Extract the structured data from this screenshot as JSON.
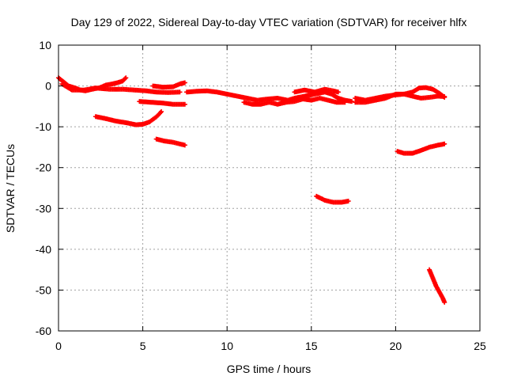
{
  "chart_data": {
    "type": "scatter",
    "title": "Day 129 of 2022, Sidereal Day-to-day VTEC variation (SDTVAR) for receiver hlfx",
    "xlabel": "GPS time / hours",
    "ylabel": "SDTVAR / TECUs",
    "xlim": [
      0,
      25
    ],
    "ylim": [
      -60,
      10
    ],
    "xticks": [
      0,
      5,
      10,
      15,
      20,
      25
    ],
    "yticks": [
      10,
      0,
      -10,
      -20,
      -30,
      -40,
      -50,
      -60
    ],
    "xtick_labels": [
      "0",
      "5",
      "10",
      "15",
      "20",
      "25"
    ],
    "ytick_labels": [
      "10",
      "0",
      "-10",
      "-20",
      "-30",
      "-40",
      "-50",
      "-60"
    ],
    "grid": true,
    "marker": "+",
    "series_color": "#ff0000",
    "tracks": [
      [
        [
          0.0,
          2.0
        ],
        [
          0.3,
          1.0
        ],
        [
          0.6,
          0.0
        ],
        [
          1.0,
          -0.5
        ],
        [
          1.3,
          -1.0
        ],
        [
          1.6,
          -1.2
        ],
        [
          2.0,
          -0.8
        ],
        [
          2.4,
          -0.5
        ],
        [
          2.8,
          0.2
        ],
        [
          3.2,
          0.5
        ],
        [
          3.5,
          0.8
        ],
        [
          3.8,
          1.2
        ],
        [
          4.0,
          2.0
        ]
      ],
      [
        [
          0.2,
          0.5
        ],
        [
          0.8,
          -1.0
        ],
        [
          1.5,
          -1.0
        ],
        [
          2.2,
          -0.5
        ],
        [
          3.0,
          -0.8
        ],
        [
          3.8,
          -0.8
        ],
        [
          4.5,
          -1.0
        ],
        [
          5.2,
          -1.2
        ],
        [
          5.8,
          -1.5
        ],
        [
          6.5,
          -1.6
        ],
        [
          7.2,
          -1.5
        ]
      ],
      [
        [
          5.6,
          0.0
        ],
        [
          6.2,
          -0.3
        ],
        [
          6.8,
          -0.2
        ],
        [
          7.2,
          0.5
        ],
        [
          7.5,
          0.8
        ]
      ],
      [
        [
          4.8,
          -3.8
        ],
        [
          5.5,
          -4.0
        ],
        [
          6.2,
          -4.2
        ],
        [
          6.8,
          -4.5
        ],
        [
          7.5,
          -4.5
        ]
      ],
      [
        [
          2.2,
          -7.5
        ],
        [
          2.8,
          -8.0
        ],
        [
          3.4,
          -8.6
        ],
        [
          4.0,
          -9.0
        ],
        [
          4.6,
          -9.5
        ],
        [
          5.0,
          -9.4
        ],
        [
          5.4,
          -8.8
        ],
        [
          5.8,
          -7.6
        ],
        [
          6.1,
          -6.3
        ]
      ],
      [
        [
          5.8,
          -13.0
        ],
        [
          6.3,
          -13.5
        ],
        [
          6.8,
          -13.8
        ],
        [
          7.3,
          -14.3
        ],
        [
          7.5,
          -14.5
        ]
      ],
      [
        [
          7.6,
          -1.5
        ],
        [
          8.2,
          -1.3
        ],
        [
          8.8,
          -1.2
        ],
        [
          9.4,
          -1.5
        ],
        [
          10.0,
          -2.0
        ],
        [
          10.6,
          -2.5
        ],
        [
          11.2,
          -3.0
        ],
        [
          11.8,
          -3.5
        ],
        [
          12.4,
          -3.2
        ],
        [
          13.0,
          -3.0
        ],
        [
          13.6,
          -3.5
        ],
        [
          14.0,
          -3.0
        ],
        [
          14.6,
          -2.5
        ],
        [
          15.2,
          -2.0
        ],
        [
          15.8,
          -1.5
        ],
        [
          16.2,
          -2.0
        ],
        [
          16.6,
          -3.0
        ],
        [
          17.0,
          -3.5
        ],
        [
          17.4,
          -3.8
        ]
      ],
      [
        [
          11.0,
          -4.0
        ],
        [
          11.5,
          -4.5
        ],
        [
          12.0,
          -4.5
        ],
        [
          12.5,
          -4.0
        ],
        [
          13.0,
          -4.5
        ],
        [
          13.5,
          -4.0
        ],
        [
          14.0,
          -3.8
        ],
        [
          14.5,
          -3.2
        ],
        [
          15.0,
          -3.5
        ],
        [
          15.5,
          -3.0
        ],
        [
          16.0,
          -3.5
        ],
        [
          16.5,
          -4.0
        ],
        [
          17.0,
          -4.0
        ]
      ],
      [
        [
          14.0,
          -1.5
        ],
        [
          14.6,
          -1.0
        ],
        [
          15.2,
          -1.5
        ],
        [
          15.8,
          -0.8
        ],
        [
          16.3,
          -1.2
        ],
        [
          16.6,
          -1.5
        ]
      ],
      [
        [
          15.3,
          -27.0
        ],
        [
          15.8,
          -28.0
        ],
        [
          16.3,
          -28.5
        ],
        [
          16.8,
          -28.5
        ],
        [
          17.2,
          -28.2
        ]
      ],
      [
        [
          17.6,
          -3.0
        ],
        [
          18.2,
          -3.5
        ],
        [
          18.8,
          -3.0
        ],
        [
          19.4,
          -2.5
        ],
        [
          20.0,
          -2.2
        ],
        [
          20.5,
          -2.0
        ],
        [
          21.0,
          -2.5
        ],
        [
          21.5,
          -3.0
        ],
        [
          22.0,
          -2.8
        ],
        [
          22.5,
          -2.5
        ],
        [
          22.9,
          -2.6
        ]
      ],
      [
        [
          17.6,
          -4.0
        ],
        [
          18.2,
          -4.0
        ],
        [
          18.8,
          -3.5
        ],
        [
          19.4,
          -3.0
        ],
        [
          20.0,
          -2.0
        ],
        [
          20.5,
          -2.0
        ],
        [
          21.0,
          -1.5
        ],
        [
          21.4,
          -0.5
        ],
        [
          21.8,
          -0.4
        ],
        [
          22.2,
          -0.8
        ],
        [
          22.6,
          -1.8
        ],
        [
          22.9,
          -2.8
        ]
      ],
      [
        [
          20.1,
          -16.0
        ],
        [
          20.5,
          -16.5
        ],
        [
          21.0,
          -16.5
        ],
        [
          21.5,
          -15.8
        ],
        [
          22.0,
          -15.0
        ],
        [
          22.5,
          -14.5
        ],
        [
          22.9,
          -14.2
        ]
      ],
      [
        [
          22.0,
          -45.0
        ],
        [
          22.2,
          -47.0
        ],
        [
          22.4,
          -49.0
        ],
        [
          22.6,
          -50.5
        ],
        [
          22.8,
          -52.0
        ],
        [
          22.9,
          -53.0
        ]
      ]
    ]
  }
}
